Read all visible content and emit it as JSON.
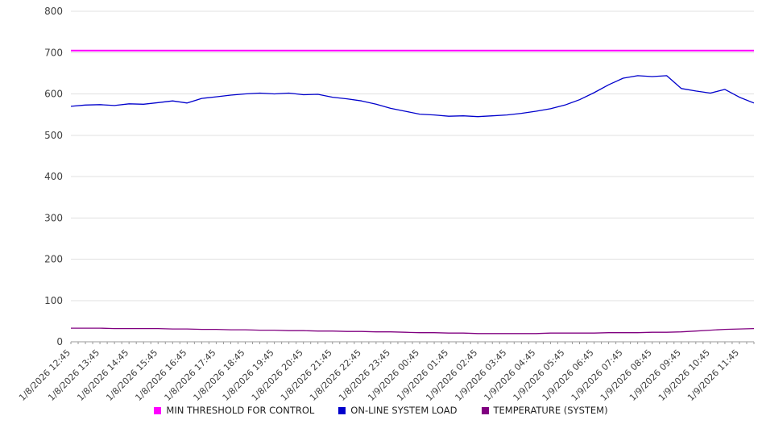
{
  "chart_data": {
    "type": "line",
    "title": "",
    "xlabel": "",
    "ylabel": "",
    "ylim": [
      0,
      800
    ],
    "y_ticks": [
      0,
      100,
      200,
      300,
      400,
      500,
      600,
      700,
      800
    ],
    "grid": "horizontal",
    "legend_position": "bottom",
    "background": "#ffffff",
    "x_labels": [
      "1/8/2026 12:45",
      "1/8/2026 13:45",
      "1/8/2026 14:45",
      "1/8/2026 15:45",
      "1/8/2026 16:45",
      "1/8/2026 17:45",
      "1/8/2026 18:45",
      "1/8/2026 19:45",
      "1/8/2026 20:45",
      "1/8/2026 21:45",
      "1/8/2026 22:45",
      "1/8/2026 23:45",
      "1/9/2026 00:45",
      "1/9/2026 01:45",
      "1/9/2026 02:45",
      "1/9/2026 03:45",
      "1/9/2026 04:45",
      "1/9/2026 05:45",
      "1/9/2026 06:45",
      "1/9/2026 07:45",
      "1/9/2026 08:45",
      "1/9/2026 09:45",
      "1/9/2026 10:45",
      "1/9/2026 11:45"
    ],
    "series": [
      {
        "name": "MIN THRESHOLD FOR CONTROL",
        "color": "#ff00ff",
        "width": 2,
        "values": [
          705,
          705
        ]
      },
      {
        "name": "ON-LINE SYSTEM LOAD",
        "color": "#0000cc",
        "width": 1.3,
        "values": [
          570,
          573,
          574,
          572,
          576,
          575,
          579,
          583,
          578,
          589,
          593,
          597,
          600,
          602,
          600,
          602,
          598,
          599,
          592,
          588,
          583,
          575,
          565,
          558,
          551,
          549,
          546,
          547,
          545,
          547,
          549,
          553,
          558,
          564,
          573,
          586,
          603,
          622,
          638,
          644,
          642,
          644,
          613,
          607,
          602,
          611,
          592,
          578
        ]
      },
      {
        "name": "TEMPERATURE (SYSTEM)",
        "color": "#800080",
        "width": 1.3,
        "values": [
          33,
          33,
          33,
          32,
          32,
          32,
          32,
          31,
          31,
          30,
          30,
          29,
          29,
          28,
          28,
          27,
          27,
          26,
          26,
          25,
          25,
          24,
          24,
          23,
          22,
          22,
          21,
          21,
          20,
          20,
          20,
          20,
          20,
          21,
          21,
          21,
          21,
          22,
          22,
          22,
          23,
          23,
          24,
          26,
          28,
          30,
          31,
          32
        ]
      }
    ]
  }
}
